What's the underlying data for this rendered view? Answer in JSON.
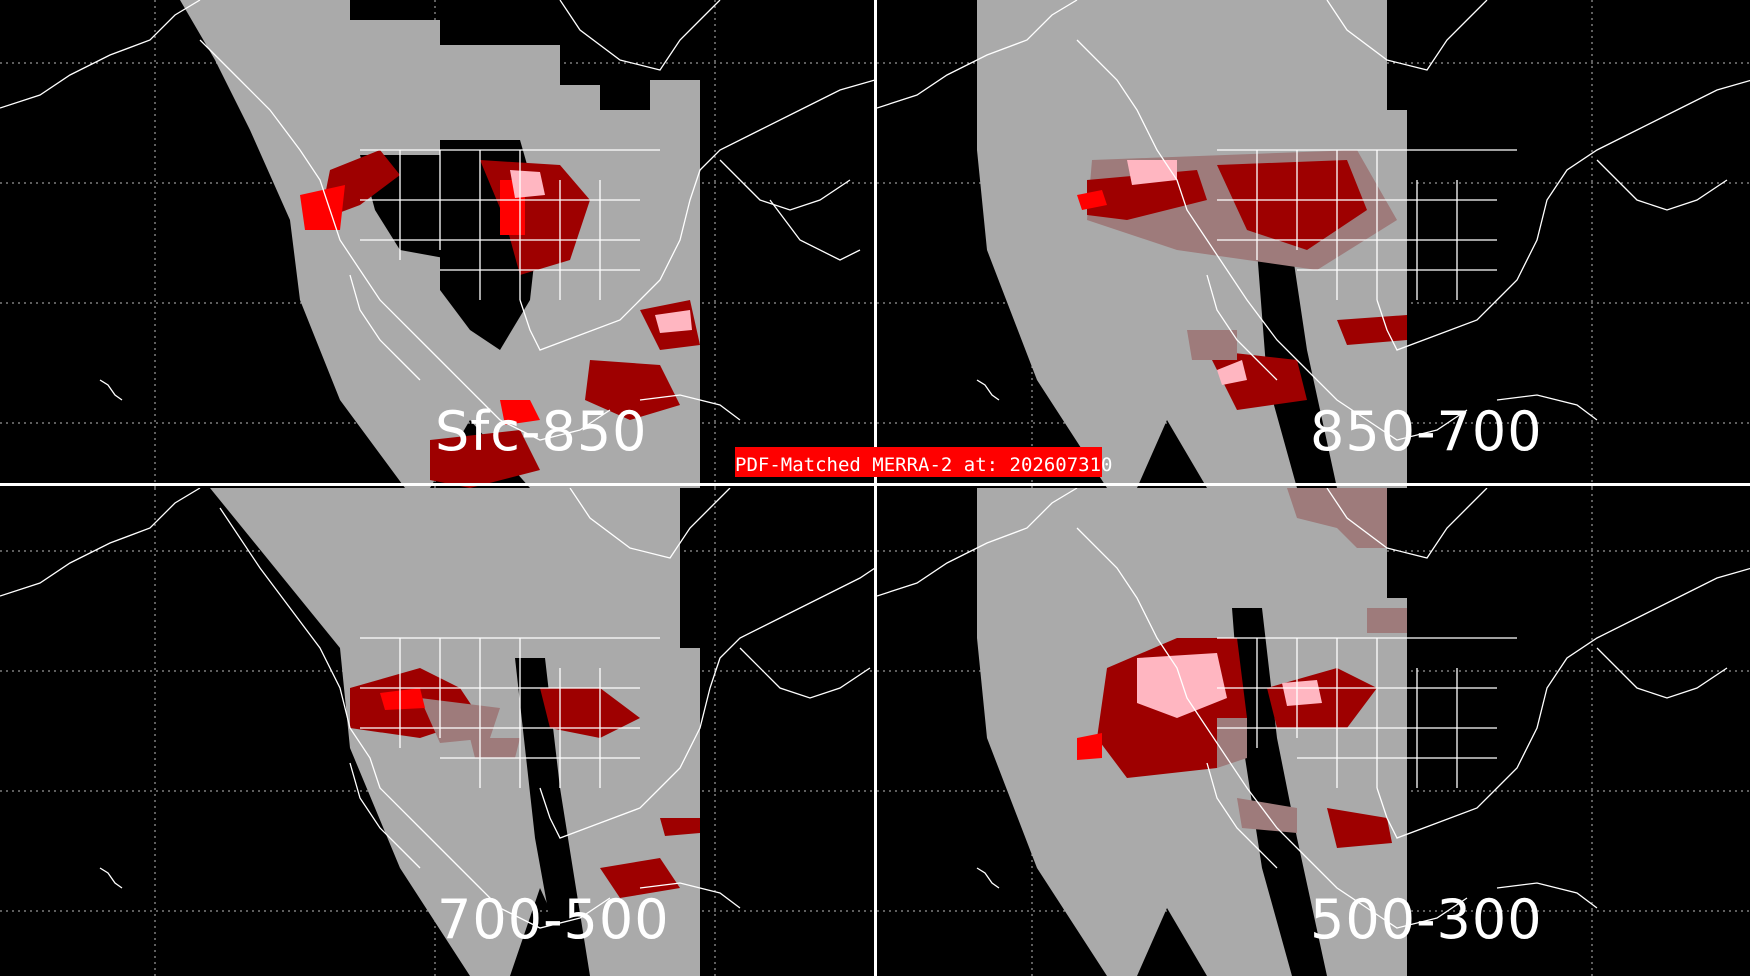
{
  "banner": {
    "title": "PDF-Matched MERRA-2 at: 202607310",
    "background": "#ff0000"
  },
  "panels": [
    {
      "id": "sfc-850",
      "label": "Sfc-850"
    },
    {
      "id": "850-700",
      "label": "850-700"
    },
    {
      "id": "700-500",
      "label": "700-500"
    },
    {
      "id": "500-300",
      "label": "500-300"
    }
  ],
  "colors": {
    "background": "#000000",
    "swath": "#aaaaaa",
    "coastline": "#ffffff",
    "grid": "#bbbbbb",
    "dark_red": "#9e0000",
    "bright_red": "#ff0000",
    "pink": "#ffb6c1",
    "mauve": "#9e7b7b"
  }
}
